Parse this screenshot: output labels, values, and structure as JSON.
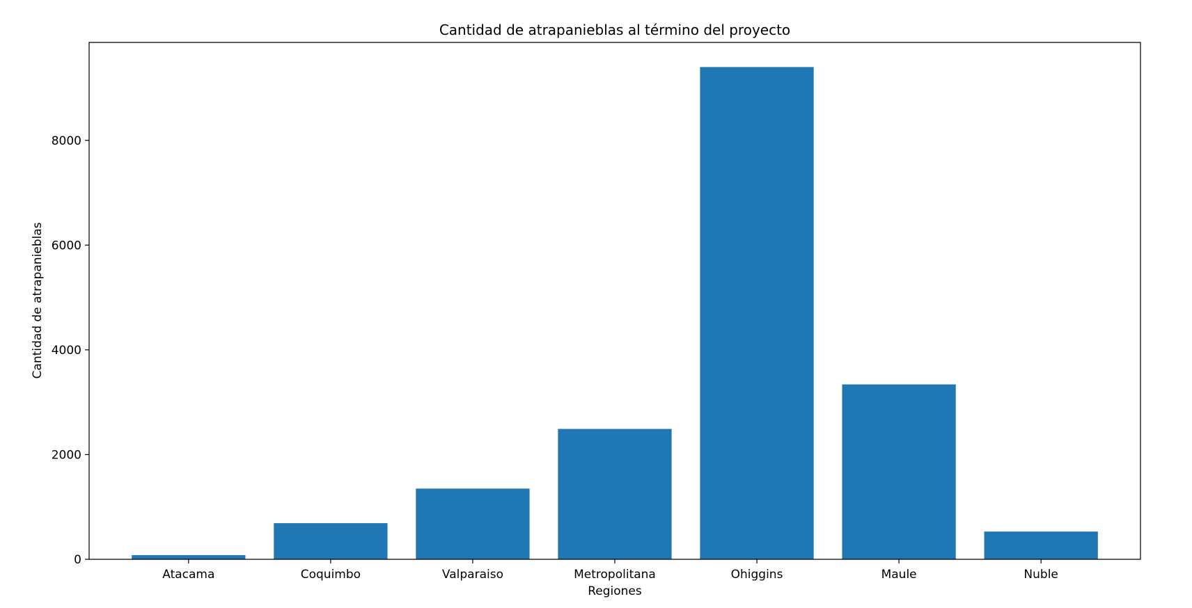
{
  "chart_data": {
    "type": "bar",
    "title": "Cantidad de atrapanieblas al término del proyecto",
    "xlabel": "Regiones",
    "ylabel": "Cantidad de atrapanieblas",
    "categories": [
      "Atacama",
      "Coquimbo",
      "Valparaiso",
      "Metropolitana",
      "Ohiggins",
      "Maule",
      "Nuble"
    ],
    "values": [
      80,
      690,
      1350,
      2490,
      9400,
      3340,
      530
    ],
    "ylim": [
      0,
      9870
    ],
    "yticks": [
      0,
      2000,
      4000,
      6000,
      8000
    ],
    "grid": false,
    "legend": "none",
    "bar_color": "#1f77b4"
  }
}
